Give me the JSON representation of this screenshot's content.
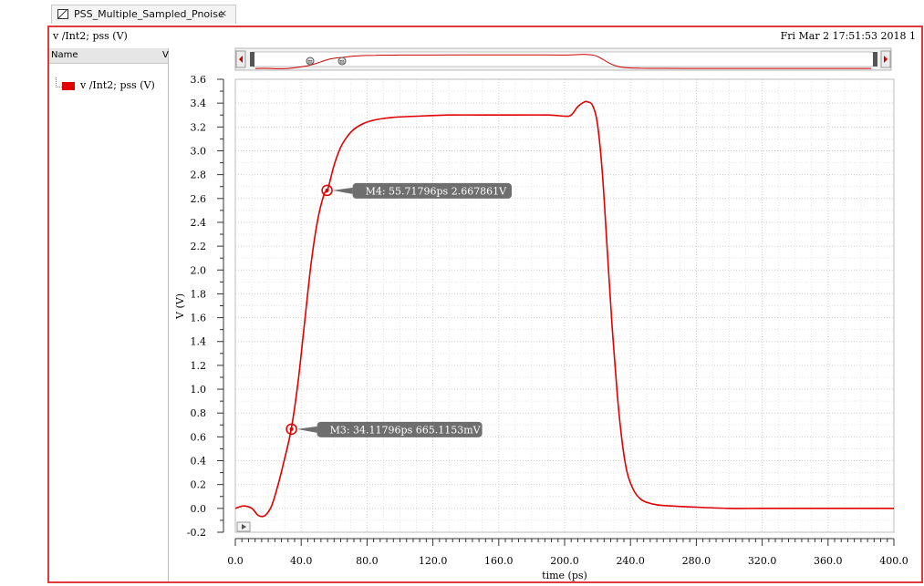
{
  "tab": {
    "label": "PSS_Multiple_Sampled_Pnoise",
    "close": "×"
  },
  "window": {
    "subtitle": "v /Int2; pss (V)",
    "timestamp": "Fri Mar 2 17:51:53 2018  1"
  },
  "legend": {
    "col_name": "Name",
    "col_v": "V",
    "entry": "v /Int2; pss (V)",
    "entry_color": "#e00000"
  },
  "colors": {
    "trace": "#e00000",
    "frame": "#e03a3a",
    "marker_box": "#6e6e6e"
  },
  "chart_data": {
    "type": "line",
    "xlabel": "time (ps)",
    "ylabel": "V (V)",
    "xlim": [
      0,
      400
    ],
    "ylim": [
      -0.2,
      3.6
    ],
    "grid": true,
    "x_ticks": [
      0,
      40,
      80,
      120,
      160,
      200,
      240,
      280,
      320,
      360,
      400
    ],
    "x_tick_labels": [
      "0.0",
      "40.0",
      "80.0",
      "120.0",
      "160.0",
      "200.0",
      "240.0",
      "280.0",
      "320.0",
      "360.0",
      "400.0"
    ],
    "y_ticks": [
      -0.2,
      0.0,
      0.2,
      0.4,
      0.6,
      0.8,
      1.0,
      1.2,
      1.4,
      1.6,
      1.8,
      2.0,
      2.2,
      2.4,
      2.6,
      2.8,
      3.0,
      3.2,
      3.4,
      3.6
    ],
    "y_tick_labels": [
      "-0.2",
      "0.0",
      "0.2",
      "0.4",
      "0.6",
      "0.8",
      "1.0",
      "1.2",
      "1.4",
      "1.6",
      "1.8",
      "2.0",
      "2.2",
      "2.4",
      "2.6",
      "2.8",
      "3.0",
      "3.2",
      "3.4",
      "3.6"
    ],
    "series": [
      {
        "color": "#e00000",
        "x": [
          0,
          5,
          10,
          14,
          18,
          22,
          26,
          30,
          34,
          38,
          42,
          46,
          50,
          54,
          56,
          60,
          64,
          68,
          72,
          78,
          85,
          95,
          110,
          130,
          160,
          190,
          200,
          204,
          208,
          212,
          214,
          217,
          220,
          223,
          226,
          229,
          232,
          235,
          238,
          242,
          246,
          250,
          256,
          265,
          280,
          300,
          320,
          350,
          380,
          400
        ],
        "y": [
          0.0,
          0.02,
          0.0,
          -0.06,
          -0.06,
          0.02,
          0.2,
          0.42,
          0.67,
          1.05,
          1.55,
          2.05,
          2.42,
          2.64,
          2.67,
          2.88,
          3.03,
          3.12,
          3.18,
          3.23,
          3.26,
          3.28,
          3.29,
          3.3,
          3.3,
          3.3,
          3.29,
          3.3,
          3.37,
          3.41,
          3.41,
          3.38,
          3.22,
          2.8,
          2.15,
          1.5,
          0.95,
          0.55,
          0.3,
          0.15,
          0.08,
          0.05,
          0.03,
          0.02,
          0.01,
          0.0,
          0.0,
          0.0,
          0.0,
          0.0
        ]
      }
    ],
    "markers": [
      {
        "label": "M4: 55.71796ps 2.667861V",
        "x": 55.71796,
        "y": 2.667861
      },
      {
        "label": "M3: 34.11796ps 665.1153mV",
        "x": 34.11796,
        "y": 0.6651153
      }
    ]
  }
}
